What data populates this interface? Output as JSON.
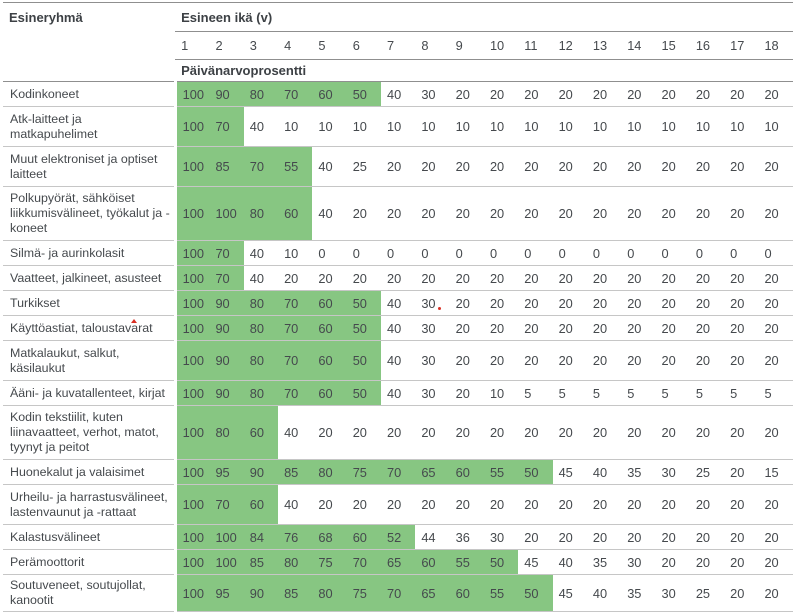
{
  "table": {
    "corner_header": "Esineryhmä",
    "age_header": "Esineen ikä (v)",
    "age_columns": [
      "1",
      "2",
      "3",
      "4",
      "5",
      "6",
      "7",
      "8",
      "9",
      "10",
      "11",
      "12",
      "13",
      "14",
      "15",
      "16",
      "17",
      "18"
    ],
    "subheader": "Päivänarvoprosentti",
    "colors": {
      "highlight_green": "#87c682",
      "text": "#45494d",
      "row_border": "#c6c6c6",
      "header_border": "#8f8f8f",
      "annotation_red": "#d93025"
    },
    "rows": [
      {
        "label": "Kodinkoneet",
        "values": [
          100,
          90,
          80,
          70,
          60,
          50,
          40,
          30,
          20,
          20,
          20,
          20,
          20,
          20,
          20,
          20,
          20,
          20
        ],
        "green_until": 6
      },
      {
        "label": "Atk-laitteet ja matkapuhelimet",
        "values": [
          100,
          70,
          40,
          10,
          10,
          10,
          10,
          10,
          10,
          10,
          10,
          10,
          10,
          10,
          10,
          10,
          10,
          10
        ],
        "green_until": 2
      },
      {
        "label": "Muut elektroniset ja optiset laitteet",
        "values": [
          100,
          85,
          70,
          55,
          40,
          25,
          20,
          20,
          20,
          20,
          20,
          20,
          20,
          20,
          20,
          20,
          20,
          20
        ],
        "green_until": 4
      },
      {
        "label": "Polkupyörät, sähköiset liikkumisvälineet, työkalut ja -koneet",
        "values": [
          100,
          100,
          80,
          60,
          40,
          20,
          20,
          20,
          20,
          20,
          20,
          20,
          20,
          20,
          20,
          20,
          20,
          20
        ],
        "green_until": 4
      },
      {
        "label": "Silmä- ja aurinkolasit",
        "values": [
          100,
          70,
          40,
          10,
          0,
          0,
          0,
          0,
          0,
          0,
          0,
          0,
          0,
          0,
          0,
          0,
          0,
          0
        ],
        "green_until": 2
      },
      {
        "label": "Vaatteet, jalkineet, asusteet",
        "values": [
          100,
          70,
          40,
          20,
          20,
          20,
          20,
          20,
          20,
          20,
          20,
          20,
          20,
          20,
          20,
          20,
          20,
          20
        ],
        "green_until": 2
      },
      {
        "label": "Turkikset",
        "values": [
          100,
          90,
          80,
          70,
          60,
          50,
          40,
          30,
          20,
          20,
          20,
          20,
          20,
          20,
          20,
          20,
          20,
          20
        ],
        "green_until": 6
      },
      {
        "label": "Käyttöastiat, taloustavarat",
        "values": [
          100,
          90,
          80,
          70,
          60,
          50,
          40,
          30,
          20,
          20,
          20,
          20,
          20,
          20,
          20,
          20,
          20,
          20
        ],
        "green_until": 6
      },
      {
        "label": "Matkalaukut, salkut, käsilaukut",
        "values": [
          100,
          90,
          80,
          70,
          60,
          50,
          40,
          30,
          20,
          20,
          20,
          20,
          20,
          20,
          20,
          20,
          20,
          20
        ],
        "green_until": 6
      },
      {
        "label": "Ääni- ja kuvatallenteet, kirjat",
        "values": [
          100,
          90,
          80,
          70,
          60,
          50,
          40,
          30,
          20,
          10,
          5,
          5,
          5,
          5,
          5,
          5,
          5,
          5
        ],
        "green_until": 6
      },
      {
        "label": "Kodin tekstiilit, kuten liinavaatteet, verhot, matot, tyynyt ja peitot",
        "values": [
          100,
          80,
          60,
          40,
          20,
          20,
          20,
          20,
          20,
          20,
          20,
          20,
          20,
          20,
          20,
          20,
          20,
          20
        ],
        "green_until": 3
      },
      {
        "label": "Huonekalut ja valaisimet",
        "values": [
          100,
          95,
          90,
          85,
          80,
          75,
          70,
          65,
          60,
          55,
          50,
          45,
          40,
          35,
          30,
          25,
          20,
          15
        ],
        "green_until": 11
      },
      {
        "label": "Urheilu- ja harrastusvälineet, lastenvaunut ja -rattaat",
        "values": [
          100,
          70,
          60,
          40,
          20,
          20,
          20,
          20,
          20,
          20,
          20,
          20,
          20,
          20,
          20,
          20,
          20,
          20
        ],
        "green_until": 3
      },
      {
        "label": "Kalastusvälineet",
        "values": [
          100,
          100,
          84,
          76,
          68,
          60,
          52,
          44,
          36,
          30,
          20,
          20,
          20,
          20,
          20,
          20,
          20,
          20
        ],
        "green_until": 7
      },
      {
        "label": "Perämoottorit",
        "values": [
          100,
          100,
          85,
          80,
          75,
          70,
          65,
          60,
          55,
          50,
          45,
          40,
          35,
          30,
          20,
          20,
          20,
          20
        ],
        "green_until": 10
      },
      {
        "label": "Soutuveneet, soutujollat, kanootit",
        "values": [
          100,
          95,
          90,
          85,
          80,
          75,
          70,
          65,
          60,
          55,
          50,
          45,
          40,
          35,
          30,
          25,
          20,
          20
        ],
        "green_until": 11
      }
    ],
    "annotations": [
      {
        "type": "caret-mark",
        "row_index": 7,
        "target": "label",
        "description": "small red caret above the letter a in taloustavarat"
      },
      {
        "type": "dot-mark",
        "row_index": 6,
        "target": "value",
        "col_index": 7,
        "description": "small red dot after the value 30"
      }
    ]
  }
}
